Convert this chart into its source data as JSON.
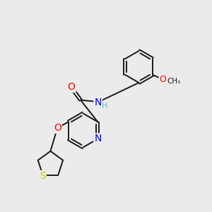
{
  "bg_color": "#ebebeb",
  "bond_color": "#1a1a1a",
  "atom_colors": {
    "O": "#ff0000",
    "N": "#0000ff",
    "S": "#cccc00",
    "H": "#5fbfbf",
    "C": "#1a1a1a"
  },
  "font_size_atom": 9,
  "line_width": 1.4
}
